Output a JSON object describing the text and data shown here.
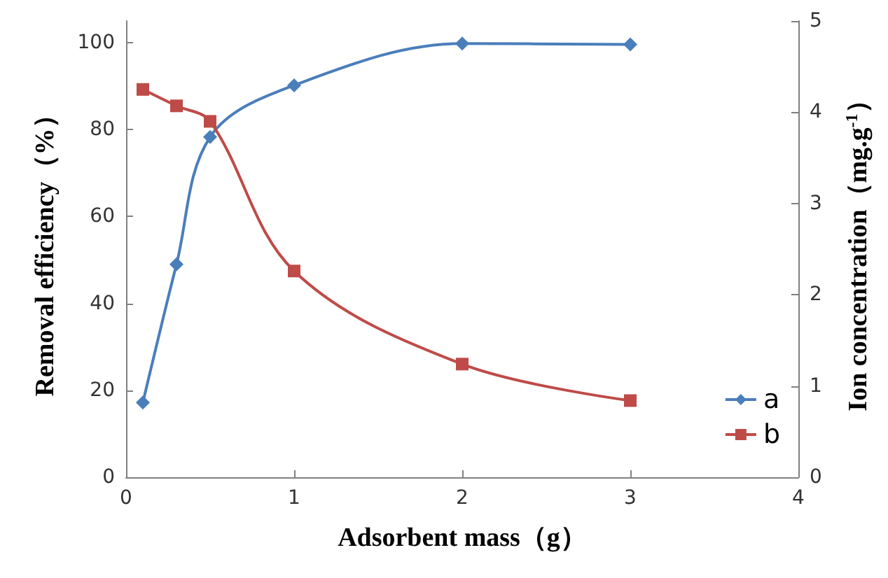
{
  "chart_data": {
    "type": "line",
    "xlabel": "Adsorbent mass（g）",
    "ylabel": "Removal efficiency（%）",
    "y2label": "Ion concentration（mg.g$^{-1}$）",
    "xlim": [
      0,
      4
    ],
    "xticks": [
      0,
      1,
      2,
      3,
      4
    ],
    "ylim": [
      0,
      105
    ],
    "yticks": [
      0,
      20,
      40,
      60,
      80,
      100
    ],
    "y2lim": [
      0,
      5
    ],
    "y2ticks": [
      0,
      1,
      2,
      3,
      4,
      5
    ],
    "x": [
      0.1,
      0.3,
      0.5,
      1,
      2,
      3
    ],
    "series": [
      {
        "name": "a",
        "color": "#4a7ebb",
        "values": [
          17.2,
          49,
          78.3,
          90.2,
          99.8,
          99.6
        ],
        "marker": "diamond"
      },
      {
        "name": "b",
        "color": "#be4b48",
        "values": [
          4.25,
          4.07,
          3.9,
          2.26,
          1.24,
          0.84
        ],
        "marker": "square",
        "axis": "y2"
      }
    ],
    "legend": "bottom right",
    "grid": false,
    "line_style": "solid"
  }
}
